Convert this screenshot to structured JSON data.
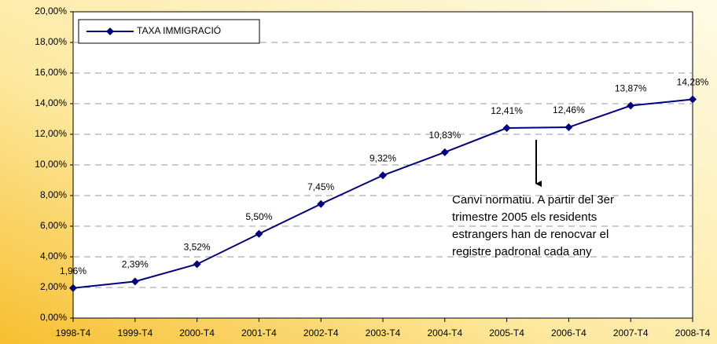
{
  "chart_data": {
    "type": "line",
    "categories": [
      "1998-T4",
      "1999-T4",
      "2000-T4",
      "2001-T4",
      "2002-T4",
      "2003-T4",
      "2004-T4",
      "2005-T4",
      "2006-T4",
      "2007-T4",
      "2008-T4"
    ],
    "series": [
      {
        "name": "TAXA IMMIGRACIÓ",
        "color": "#000080",
        "values": [
          1.96,
          2.39,
          3.52,
          5.5,
          7.45,
          9.32,
          10.83,
          12.41,
          12.46,
          13.87,
          14.28
        ],
        "value_labels": [
          "1,96%",
          "2,39%",
          "3,52%",
          "5,50%",
          "7,45%",
          "9,32%",
          "10,83%",
          "12,41%",
          "12,46%",
          "13,87%",
          "14,28%"
        ]
      }
    ],
    "ylim": [
      0,
      20
    ],
    "yticks": [
      {
        "value": 0,
        "label": "0,00%"
      },
      {
        "value": 2,
        "label": "2,00%"
      },
      {
        "value": 4,
        "label": "4,00%"
      },
      {
        "value": 6,
        "label": "6,00%"
      },
      {
        "value": 8,
        "label": "8,00%"
      },
      {
        "value": 10,
        "label": "10,00%"
      },
      {
        "value": 12,
        "label": "12,00%"
      },
      {
        "value": 14,
        "label": "14,00%"
      },
      {
        "value": 16,
        "label": "16,00%"
      },
      {
        "value": 18,
        "label": "18,00%"
      },
      {
        "value": 20,
        "label": "20,00%"
      }
    ],
    "grid": true,
    "legend": "top-left",
    "annotation": [
      "Canvi normatiu. A partir del 3er",
      "trimestre 2005 els residents",
      "estrangers han de renocvar el",
      "registre padronal cada any"
    ]
  }
}
